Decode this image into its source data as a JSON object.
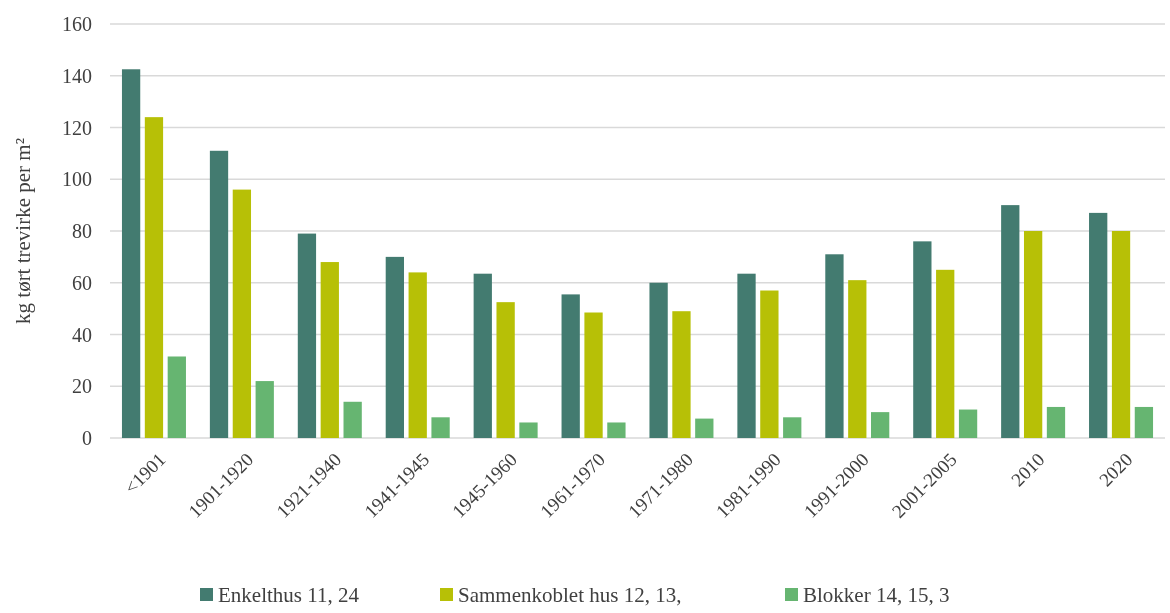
{
  "chart_data": {
    "type": "bar",
    "ylabel": "kg tørt trevirke per m²",
    "categories": [
      "<1901",
      "1901-1920",
      "1921-1940",
      "1941-1945",
      "1945-1960",
      "1961-1970",
      "1971-1980",
      "1981-1990",
      "1991-2000",
      "2001-2005",
      "2010",
      "2020"
    ],
    "series": [
      {
        "name": "Enkelthus 11, 24",
        "color": "#437b70",
        "values": [
          142.5,
          111,
          79,
          70,
          63.5,
          55.5,
          60,
          63.5,
          71,
          76,
          90,
          87
        ]
      },
      {
        "name": "Sammenkoblet hus 12, 13,",
        "color": "#b7c006",
        "values": [
          124,
          96,
          68,
          64,
          52.5,
          48.5,
          49,
          57,
          61,
          65,
          80,
          80
        ]
      },
      {
        "name": "Blokker 14, 15, 3",
        "color": "#66b571",
        "values": [
          31.5,
          22,
          14,
          8,
          6,
          6,
          7.5,
          8,
          10,
          11,
          12,
          12
        ]
      }
    ],
    "ylim": [
      0,
      160
    ],
    "yticks": [
      0,
      20,
      40,
      60,
      80,
      100,
      120,
      140,
      160
    ],
    "grid": "y",
    "legend": "bottom"
  }
}
